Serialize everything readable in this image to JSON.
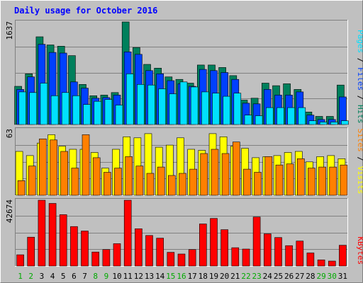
{
  "chart_data": {
    "type": "bar",
    "title": "Daily usage for October 2016",
    "x": [
      "1",
      "2",
      "3",
      "4",
      "5",
      "6",
      "7",
      "8",
      "9",
      "10",
      "11",
      "12",
      "13",
      "14",
      "15",
      "16",
      "17",
      "18",
      "19",
      "20",
      "21",
      "22",
      "23",
      "24",
      "25",
      "26",
      "27",
      "28",
      "29",
      "30",
      "31"
    ],
    "weekend_days": [
      "1",
      "2",
      "8",
      "9",
      "15",
      "16",
      "22",
      "23",
      "29",
      "30"
    ],
    "colors": {
      "background": "#c0c0c0",
      "plot": "#c0c0c0",
      "grid": "#808080",
      "title": "#0000ff",
      "weekday_label": "#000000",
      "weekend_label": "#00aa00",
      "hits": "#00805c",
      "files": "#0040ff",
      "pages": "#00e0ff",
      "visits": "#ffff00",
      "sites": "#ff8000",
      "kbytes": "#ff0000"
    },
    "panels": [
      {
        "id": "hits-files-pages",
        "ymax_label": "1637",
        "ymax": 1637,
        "right_label": [
          {
            "text": "Pages",
            "color": "#00e0ff"
          },
          {
            "text": " / ",
            "color": "#000000"
          },
          {
            "text": "Files",
            "color": "#0040ff"
          },
          {
            "text": " / ",
            "color": "#000000"
          },
          {
            "text": "Hits",
            "color": "#00805c"
          }
        ],
        "series": [
          {
            "name": "Hits",
            "color": "#00805c",
            "values": [
              610,
              810,
              1400,
              1270,
              1250,
              1100,
              640,
              460,
              470,
              510,
              1637,
              1230,
              960,
              900,
              760,
              720,
              660,
              950,
              950,
              910,
              780,
              390,
              420,
              660,
              620,
              650,
              560,
              200,
              130,
              130,
              630
            ]
          },
          {
            "name": "Files",
            "color": "#0040ff",
            "values": [
              560,
              760,
              1280,
              1150,
              1140,
              680,
              580,
              420,
              430,
              470,
              1160,
              1120,
              860,
              810,
              700,
              650,
              610,
              880,
              860,
              830,
              720,
              340,
              330,
              560,
              470,
              470,
              520,
              150,
              80,
              80,
              440
            ]
          },
          {
            "name": "Pages",
            "color": "#00e0ff",
            "values": [
              520,
              510,
              660,
              460,
              510,
              460,
              320,
              370,
              400,
              310,
              810,
              640,
              630,
              570,
              490,
              680,
              600,
              520,
              500,
              450,
              500,
              150,
              140,
              270,
              270,
              270,
              270,
              60,
              40,
              40,
              60
            ]
          }
        ]
      },
      {
        "id": "visits-sites",
        "ymax_label": "63",
        "ymax": 63,
        "right_label": [
          {
            "text": "Sites",
            "color": "#ff8000"
          },
          {
            "text": " / ",
            "color": "#000000"
          },
          {
            "text": "Visits",
            "color": "#ffff00"
          }
        ],
        "series": [
          {
            "name": "Visits",
            "color": "#ffff00",
            "values": [
              42,
              38,
              50,
              58,
              47,
              44,
              44,
              41,
              26,
              44,
              56,
              55,
              59,
              46,
              48,
              55,
              44,
              43,
              59,
              56,
              47,
              45,
              36,
              37,
              38,
              41,
              42,
              32,
              37,
              38,
              35
            ]
          },
          {
            "name": "Sites",
            "color": "#ff8000",
            "values": [
              14,
              28,
              54,
              53,
              42,
              26,
              58,
              36,
              22,
              26,
              37,
              28,
              21,
              27,
              19,
              21,
              25,
              40,
              44,
              40,
              51,
              25,
              22,
              37,
              29,
              30,
              35,
              26,
              27,
              27,
              29
            ]
          }
        ]
      },
      {
        "id": "kbytes",
        "ymax_label": "42674",
        "ymax": 42674,
        "right_label": [
          {
            "text": "KBytes",
            "color": "#ff0000"
          }
        ],
        "series": [
          {
            "name": "KBytes",
            "color": "#ff0000",
            "values": [
              7300,
              18700,
              42674,
              40600,
              33300,
              25600,
              22700,
              9100,
              10700,
              14500,
              42674,
              24200,
              19800,
              18100,
              8900,
              7800,
              10700,
              27300,
              30900,
              23600,
              11900,
              11000,
              31800,
              20900,
              18500,
              13200,
              16200,
              8500,
              4000,
              3200,
              13500
            ]
          }
        ]
      }
    ]
  }
}
